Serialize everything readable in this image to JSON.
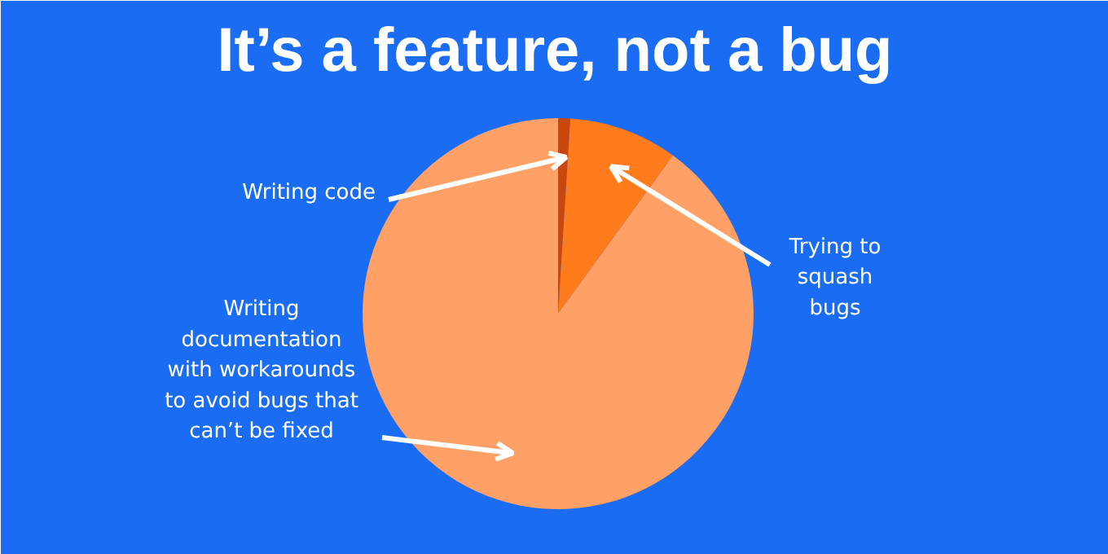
{
  "chart_data": {
    "type": "pie",
    "title": "It’s a feature, not a bug",
    "categories": [
      "Writing code",
      "Trying to\nsquash\nbugs",
      "Writing\ndocumentation\nwith workarounds\nto avoid bugs that\ncan’t be fixed"
    ],
    "values": [
      1,
      9,
      90
    ],
    "colors": [
      "#c9470c",
      "#ff7b1c",
      "#ffa066"
    ],
    "legend": false
  }
}
